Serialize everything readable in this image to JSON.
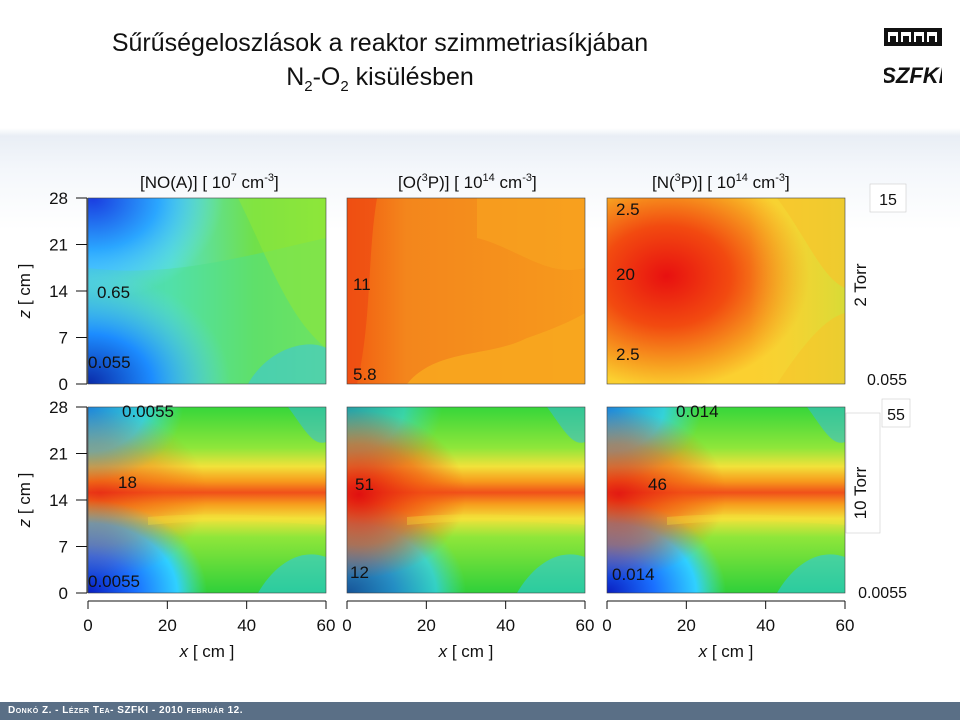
{
  "header": {
    "title_line1": "Sűrűségeloszlások a reaktor szimmetriasíkjában",
    "title_line2_prefix": "N",
    "title_line2_sub1": "2",
    "title_line2_mid": "-O",
    "title_line2_sub2": "2",
    "title_line2_suffix": " kisülésben",
    "logo_text": "SZFKI"
  },
  "footer": {
    "text": "Donkó Z. - Lézer Tea- SZFKI - 2010 február 12."
  },
  "chart_data": {
    "type": "heatmap",
    "xlabel_var": "x",
    "xlabel_unit": "[ cm ]",
    "ylabel_var": "z",
    "ylabel_unit": "[ cm ]",
    "xticks": [
      "0",
      "20",
      "40",
      "60"
    ],
    "yticks": [
      "0",
      "7",
      "14",
      "21",
      "28"
    ],
    "xlim": [
      0,
      60
    ],
    "ylim": [
      0,
      28
    ],
    "columns": [
      {
        "pre": "[NO(A)] [ 10",
        "exp": "7",
        "unit": " cm",
        "unit_exp": "-3",
        "post": "]"
      },
      {
        "pre": "[O(",
        "sup": "3",
        "mid": "P)] [ 10",
        "exp": "14",
        "unit": " cm",
        "unit_exp": "-3",
        "post": "]"
      },
      {
        "pre": "[N(",
        "sup": "3",
        "mid": "P)] [ 10",
        "exp": "14",
        "unit": " cm",
        "unit_exp": "-3",
        "post": "]"
      }
    ],
    "rows": [
      {
        "pressure": "2 Torr",
        "scale_max": "15",
        "scale_min": "0.055",
        "labels": [
          [
            "0.65",
            "0.055"
          ],
          [
            "11",
            "5.8"
          ],
          [
            "2.5",
            "20",
            "2.5"
          ]
        ]
      },
      {
        "pressure": "10 Torr",
        "scale_max": "55",
        "scale_min": "0.0055",
        "labels": [
          [
            "0.0055",
            "18",
            "0.0055"
          ],
          [
            "51",
            "12"
          ],
          [
            "0.014",
            "46",
            "0.014"
          ]
        ]
      }
    ]
  }
}
